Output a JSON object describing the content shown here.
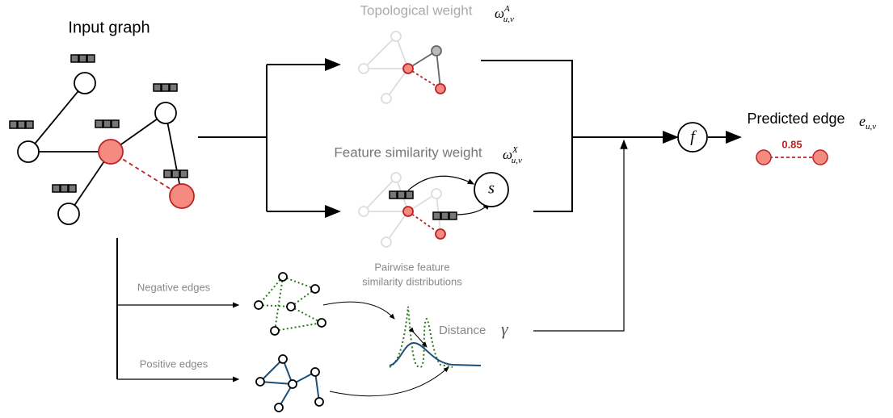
{
  "input_graph": {
    "title": "Input graph"
  },
  "topological": {
    "label": "Topological weight",
    "symbol": {
      "base": "ω",
      "sup": "A",
      "sub": "u,v"
    }
  },
  "feature": {
    "label": "Feature similarity weight",
    "symbol": {
      "base": "ω",
      "sup": "X",
      "sub": "u,v"
    },
    "similarity": "s"
  },
  "combine": "f",
  "prediction": {
    "label": "Predicted edge",
    "symbol": {
      "base": "e",
      "sub": "u,v"
    },
    "score": "0.85"
  },
  "negative": "Negative edges",
  "positive": "Positive edges",
  "distributions": {
    "label_lines": [
      "Pairwise feature",
      "similarity distributions"
    ],
    "distance": "Distance",
    "distance_symbol": "γ"
  }
}
